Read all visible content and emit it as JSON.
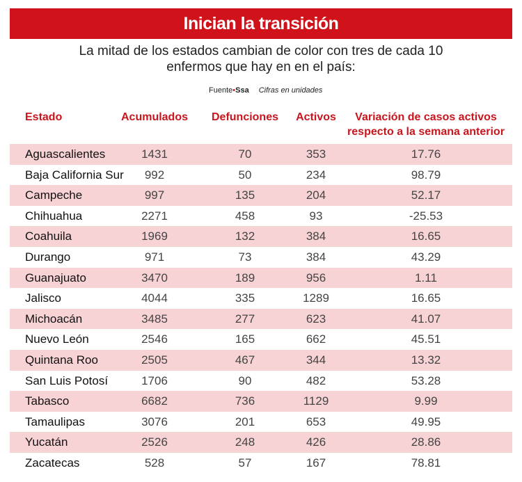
{
  "header": {
    "title": "Inician la transición",
    "subtitle": "La mitad de los estados cambian de color con tres de cada 10 enfermos que hay en en el país:"
  },
  "source": {
    "label": "Fuente",
    "name": "Ssa",
    "note": "Cifras en unidades"
  },
  "table": {
    "columns": [
      "Estado",
      "Acumulados",
      "Defunciones",
      "Activos",
      "Variación de casos activos respecto a la semana anterior"
    ],
    "rows": [
      [
        "Aguascalientes",
        1431,
        70,
        353,
        17.76
      ],
      [
        "Baja California Sur",
        992,
        50,
        234,
        98.79
      ],
      [
        "Campeche",
        997,
        135,
        204,
        52.17
      ],
      [
        "Chihuahua",
        2271,
        458,
        93,
        -25.53
      ],
      [
        "Coahuila",
        1969,
        132,
        384,
        16.65
      ],
      [
        "Durango",
        971,
        73,
        384,
        43.29
      ],
      [
        "Guanajuato",
        3470,
        189,
        956,
        1.11
      ],
      [
        "Jalisco",
        4044,
        335,
        1289,
        16.65
      ],
      [
        "Michoacán",
        3485,
        277,
        623,
        41.07
      ],
      [
        "Nuevo León",
        2546,
        165,
        662,
        45.51
      ],
      [
        "Quintana Roo",
        2505,
        467,
        344,
        13.32
      ],
      [
        "San Luis Potosí",
        1706,
        90,
        482,
        53.28
      ],
      [
        "Tabasco",
        6682,
        736,
        1129,
        9.99
      ],
      [
        "Tamaulipas",
        3076,
        201,
        653,
        49.95
      ],
      [
        "Yucatán",
        2526,
        248,
        426,
        28.86
      ],
      [
        "Zacatecas",
        528,
        57,
        167,
        78.81
      ]
    ]
  }
}
